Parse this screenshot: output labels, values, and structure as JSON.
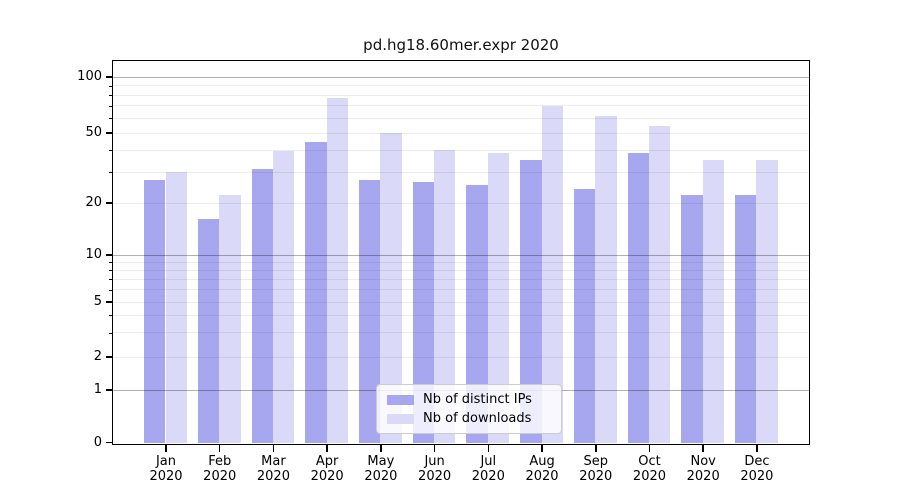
{
  "chart_data": {
    "type": "bar",
    "title": "pd.hg18.60mer.expr 2020",
    "x_months": [
      "Jan",
      "Feb",
      "Mar",
      "Apr",
      "May",
      "Jun",
      "Jul",
      "Aug",
      "Sep",
      "Oct",
      "Nov",
      "Dec"
    ],
    "x_year": "2020",
    "series": [
      {
        "name": "Nb of distinct IPs",
        "color": "#a7a7f0",
        "values": [
          27,
          16,
          31,
          44,
          27,
          26,
          25,
          35,
          24,
          38,
          22,
          22
        ]
      },
      {
        "name": "Nb of downloads",
        "color": "#dadaf8",
        "values": [
          30,
          22,
          39,
          77,
          50,
          40,
          38,
          69,
          61,
          54,
          35,
          35
        ]
      }
    ],
    "yscale": "log",
    "ylim": [
      0,
      120
    ],
    "ytick_labels": [
      "100",
      "50",
      "20",
      "10",
      "5",
      "2",
      "1",
      "0"
    ],
    "grid": "on",
    "legend_position": "lower center",
    "background_color": "#ffffff",
    "spine_color": "#000000"
  }
}
